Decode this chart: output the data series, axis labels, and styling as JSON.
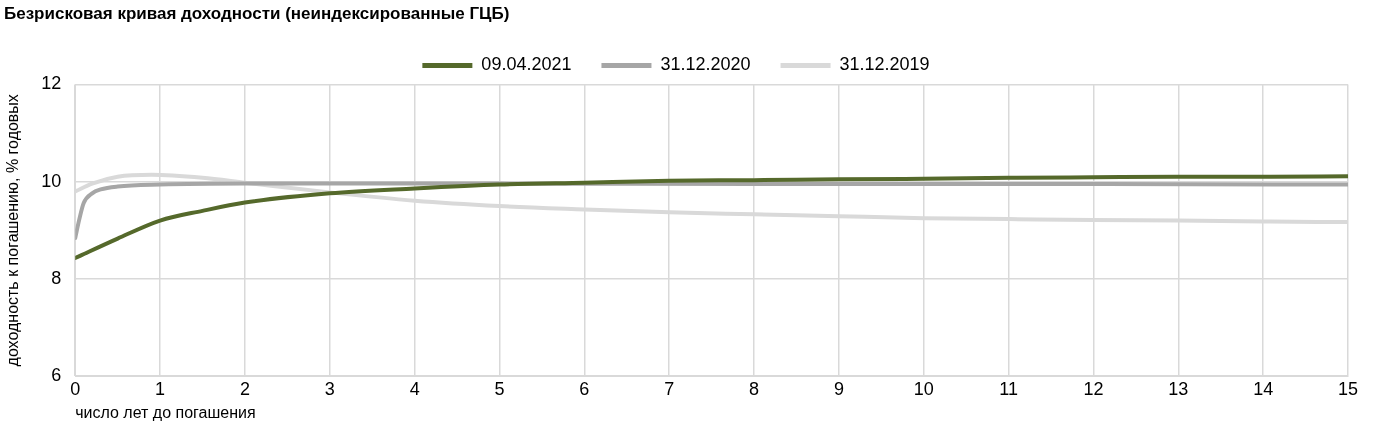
{
  "chart_data": {
    "type": "line",
    "title": "Безрисковая кривая доходности (неиндексированные ГЦБ)",
    "xlabel": "число лет до погашения",
    "ylabel": "доходность к погашению, % годовых",
    "xlim": [
      0,
      15
    ],
    "xticks": [
      0,
      1,
      2,
      3,
      4,
      5,
      6,
      7,
      8,
      9,
      10,
      11,
      12,
      13,
      14,
      15
    ],
    "ylim": [
      6,
      12
    ],
    "yticks": [
      6,
      8,
      10,
      12
    ],
    "grid": true,
    "legend": "top",
    "marker": "none",
    "line_style": "solid",
    "series": [
      {
        "name": "09.04.2021",
        "color": "#55692b",
        "x": [
          0,
          0.5,
          1,
          1.5,
          2,
          3,
          4,
          5,
          6,
          7,
          8,
          9,
          10,
          11,
          12,
          13,
          14,
          15
        ],
        "values": [
          8.43,
          8.83,
          9.2,
          9.4,
          9.57,
          9.76,
          9.86,
          9.94,
          9.98,
          10.02,
          10.03,
          10.05,
          10.06,
          10.08,
          10.09,
          10.1,
          10.1,
          10.11
        ]
      },
      {
        "name": "31.12.2020",
        "color": "#a6a6a6",
        "x": [
          0,
          0.05,
          0.1,
          0.2,
          0.3,
          0.5,
          1,
          2,
          3,
          5,
          8,
          12,
          15
        ],
        "values": [
          8.84,
          9.24,
          9.56,
          9.76,
          9.84,
          9.9,
          9.94,
          9.96,
          9.96,
          9.96,
          9.95,
          9.95,
          9.94
        ]
      },
      {
        "name": "31.12.2019",
        "color": "#d9d9d9",
        "x": [
          0,
          0.2,
          0.5,
          0.9,
          1.5,
          2,
          3,
          4,
          5,
          6,
          7,
          8,
          9,
          10,
          11,
          12,
          13,
          14,
          15
        ],
        "values": [
          9.8,
          9.96,
          10.1,
          10.14,
          10.08,
          9.98,
          9.78,
          9.61,
          9.5,
          9.43,
          9.37,
          9.33,
          9.29,
          9.25,
          9.23,
          9.21,
          9.2,
          9.18,
          9.17
        ]
      }
    ]
  }
}
